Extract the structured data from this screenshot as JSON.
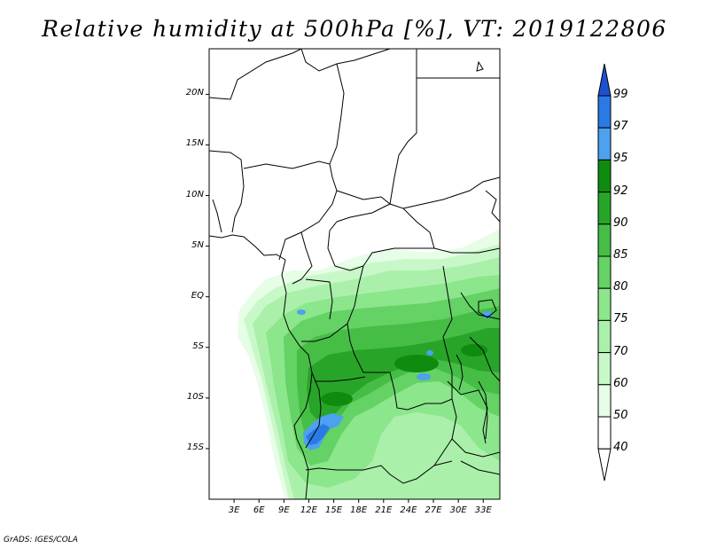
{
  "title": "Relative humidity at 500hPa [%], VT: 2019122806",
  "credit": "GrADS: IGES/COLA",
  "map": {
    "lat_labels": [
      "20N",
      "15N",
      "10N",
      "5N",
      "EQ",
      "5S",
      "10S",
      "15S"
    ],
    "lon_labels": [
      "3E",
      "6E",
      "9E",
      "12E",
      "15E",
      "18E",
      "21E",
      "24E",
      "27E",
      "30E",
      "33E"
    ],
    "lat_range": [
      -20,
      24.5
    ],
    "lon_range": [
      0,
      35
    ]
  },
  "colorbar": {
    "levels": [
      "99",
      "97",
      "95",
      "92",
      "90",
      "85",
      "80",
      "75",
      "70",
      "60",
      "50",
      "40"
    ],
    "colors": [
      "#1e50d2",
      "#2a7ae6",
      "#4ea0f0",
      "#0f8c0f",
      "#28a528",
      "#46be46",
      "#64d264",
      "#8ce68c",
      "#aaf0aa",
      "#c8f8c8",
      "#e6fde6",
      "#ffffff"
    ]
  }
}
